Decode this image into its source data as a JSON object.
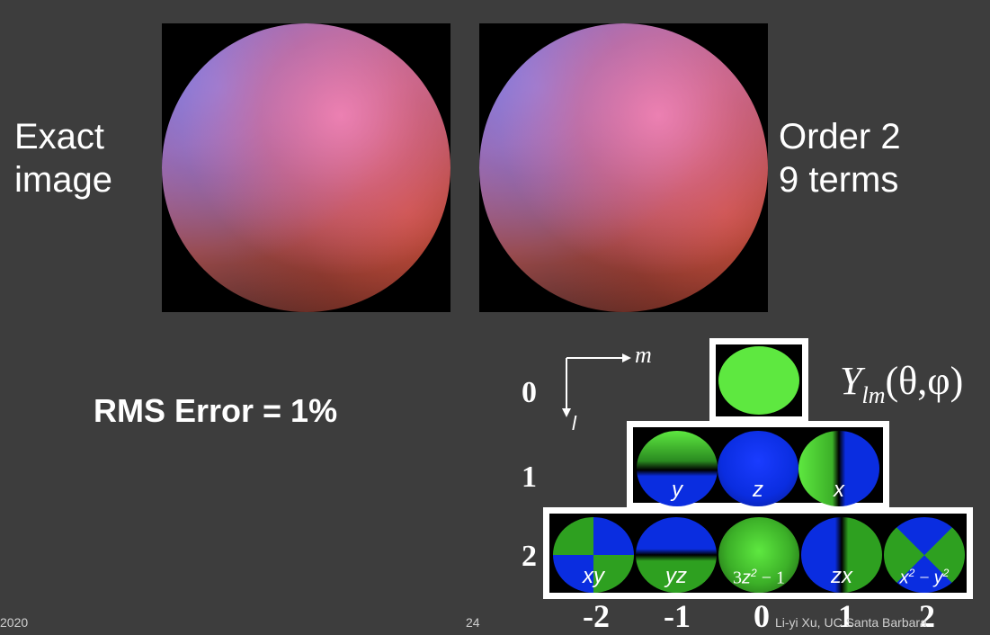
{
  "labels": {
    "left_line1": "Exact",
    "left_line2": "image",
    "right_line1": "Order 2",
    "right_line2": "9 terms",
    "rms": "RMS Error = 1%"
  },
  "harmonics": {
    "title_Y": "Y",
    "title_sub": "lm",
    "title_args": "(θ,φ)",
    "axis_m": "m",
    "axis_l": "l",
    "row_labels": [
      "0",
      "1",
      "2"
    ],
    "row1": [
      "y",
      "z",
      "x"
    ],
    "row2_terms": {
      "xy": "xy",
      "yz": "yz",
      "t3_coef": "3",
      "t3_var": "z",
      "t3_exp": "2",
      "t3_tail": " − 1",
      "zx": "zx",
      "t5_a": "x",
      "t5_a_exp": "2",
      "t5_mid": " − ",
      "t5_b": "y",
      "t5_b_exp": "2"
    },
    "m_values": [
      "-2",
      "-1",
      "0",
      "1",
      "2"
    ]
  },
  "footer": {
    "left": "2020",
    "center": "24",
    "right": "Li-yi Xu, UC Santa Barbara"
  },
  "colors": {
    "background": "#3d3d3d",
    "green": "#5ee840",
    "blue": "#0a2de0"
  }
}
